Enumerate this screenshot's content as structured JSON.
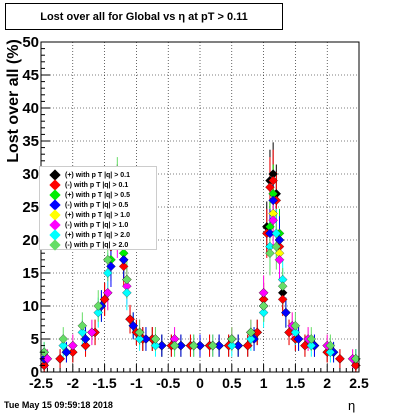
{
  "title": "Lost over all for Global vs   η at pT > 0.11",
  "stamp": "Tue May 15 09:59:18 2018",
  "chart_data": {
    "type": "scatter",
    "xlabel": "η",
    "ylabel": "Lost over all (%)",
    "xlim": [
      -2.5,
      2.5
    ],
    "ylim": [
      0,
      50
    ],
    "xticks": [
      -2.5,
      -2,
      -1.5,
      -1,
      -0.5,
      0,
      0.5,
      1,
      1.5,
      2,
      2.5
    ],
    "xtick_labels": [
      "-2.5",
      "-2",
      "-1.5",
      "-1",
      "-0.5",
      "0",
      "0.5",
      "1",
      "1.5",
      "2",
      "2.5"
    ],
    "yticks": [
      0,
      5,
      10,
      15,
      20,
      25,
      30,
      35,
      40,
      45,
      50
    ],
    "ytick_labels": [
      "0",
      "5",
      "10",
      "15",
      "20",
      "25",
      "30",
      "35",
      "40",
      "45",
      "50"
    ],
    "grid": true,
    "legend_position": "left",
    "marker": "diamond",
    "series": [
      {
        "name": "(+) with p T |q| > 0.1",
        "color": "#000000",
        "x": [
          -2.45,
          -2.2,
          -2.0,
          -1.8,
          -1.65,
          -1.5,
          -1.4,
          -1.35,
          -1.3,
          -1.25,
          -1.2,
          -1.1,
          -1.0,
          -0.9,
          -0.75,
          -0.6,
          -0.45,
          -0.3,
          -0.15,
          0.0,
          0.15,
          0.3,
          0.45,
          0.6,
          0.75,
          0.9,
          1.0,
          1.05,
          1.1,
          1.15,
          1.2,
          1.25,
          1.3,
          1.4,
          1.5,
          1.65,
          1.8,
          2.0,
          2.2,
          2.45
        ],
        "y": [
          1,
          2,
          3,
          4,
          6,
          11,
          19,
          25,
          27,
          26,
          17,
          8,
          6,
          5,
          5,
          4,
          4,
          4,
          4,
          4,
          4,
          4,
          4,
          4,
          4,
          6,
          11,
          22,
          29,
          30,
          27,
          20,
          12,
          6,
          5,
          4,
          4,
          3,
          2,
          1
        ]
      },
      {
        "name": "(-) with p T |q| > 0.1",
        "color": "#ff0000",
        "x": [
          -2.45,
          -2.2,
          -2.0,
          -1.8,
          -1.65,
          -1.5,
          -1.4,
          -1.35,
          -1.3,
          -1.25,
          -1.2,
          -1.1,
          -1.0,
          -0.9,
          -0.75,
          -0.6,
          -0.45,
          -0.3,
          -0.15,
          0.0,
          0.15,
          0.3,
          0.45,
          0.6,
          0.75,
          0.9,
          1.0,
          1.05,
          1.1,
          1.15,
          1.2,
          1.25,
          1.3,
          1.4,
          1.5,
          1.65,
          1.8,
          2.0,
          2.2,
          2.45
        ],
        "y": [
          1,
          2,
          3,
          4,
          6,
          11,
          19,
          24,
          26,
          25,
          16,
          8,
          6,
          5,
          5,
          4,
          4,
          4,
          4,
          4,
          4,
          4,
          4,
          4,
          4,
          6,
          11,
          21,
          28,
          29,
          26,
          19,
          11,
          6,
          5,
          4,
          4,
          3,
          2,
          1
        ]
      },
      {
        "name": "(+) with p T |q| > 0.5",
        "color": "#00ee00",
        "x": [
          -2.45,
          -2.1,
          -1.8,
          -1.55,
          -1.4,
          -1.3,
          -1.2,
          -1.05,
          -0.85,
          -0.6,
          -0.3,
          0.0,
          0.3,
          0.6,
          0.85,
          1.0,
          1.1,
          1.15,
          1.25,
          1.35,
          1.55,
          1.8,
          2.1,
          2.45
        ],
        "y": [
          2,
          3,
          5,
          10,
          17,
          24,
          18,
          7,
          5,
          4,
          4,
          4,
          4,
          4,
          5,
          10,
          22,
          27,
          21,
          9,
          5,
          4,
          3,
          2
        ]
      },
      {
        "name": "(-) with p T |q| > 0.5",
        "color": "#0000ff",
        "x": [
          -2.45,
          -2.1,
          -1.8,
          -1.55,
          -1.4,
          -1.3,
          -1.2,
          -1.05,
          -0.85,
          -0.6,
          -0.3,
          0.0,
          0.3,
          0.6,
          0.85,
          1.0,
          1.1,
          1.15,
          1.25,
          1.35,
          1.55,
          1.8,
          2.1,
          2.45
        ],
        "y": [
          2,
          3,
          5,
          10,
          16,
          23,
          17,
          7,
          5,
          4,
          4,
          4,
          4,
          4,
          5,
          10,
          21,
          26,
          20,
          9,
          5,
          4,
          3,
          2
        ]
      },
      {
        "name": "(+) with p T |q| > 1.0",
        "color": "#ffff00",
        "x": [
          -2.4,
          -2.0,
          -1.7,
          -1.45,
          -1.3,
          -1.15,
          -0.95,
          -0.7,
          -0.4,
          -0.1,
          0.2,
          0.5,
          0.8,
          1.0,
          1.15,
          1.25,
          1.45,
          1.7,
          2.0,
          2.4
        ],
        "y": [
          2,
          4,
          6,
          12,
          22,
          14,
          6,
          5,
          5,
          4,
          4,
          5,
          6,
          12,
          24,
          18,
          7,
          5,
          4,
          2
        ]
      },
      {
        "name": "(-) with p T |q| > 1.0",
        "color": "#ff00ff",
        "x": [
          -2.4,
          -2.0,
          -1.7,
          -1.45,
          -1.3,
          -1.15,
          -0.95,
          -0.7,
          -0.4,
          -0.1,
          0.2,
          0.5,
          0.8,
          1.0,
          1.15,
          1.25,
          1.45,
          1.7,
          2.0,
          2.4
        ],
        "y": [
          2,
          4,
          6,
          12,
          21,
          13,
          6,
          5,
          5,
          4,
          4,
          5,
          6,
          12,
          23,
          17,
          7,
          5,
          4,
          2
        ]
      },
      {
        "name": "(+) with p T |q| > 2.0",
        "color": "#00ffff",
        "x": [
          -2.45,
          -2.15,
          -1.85,
          -1.6,
          -1.45,
          -1.3,
          -1.15,
          -0.95,
          -0.7,
          -0.4,
          -0.1,
          0.2,
          0.5,
          0.8,
          1.0,
          1.1,
          1.2,
          1.3,
          1.5,
          1.75,
          2.05,
          2.45
        ],
        "y": [
          3,
          4,
          6,
          9,
          15,
          23,
          12,
          5,
          4,
          4,
          4,
          4,
          4,
          5,
          9,
          19,
          21,
          14,
          6,
          4,
          3,
          2
        ]
      },
      {
        "name": "(-) with p T |q| > 2.0",
        "color": "#66dd66",
        "x": [
          -2.45,
          -2.15,
          -1.85,
          -1.6,
          -1.45,
          -1.3,
          -1.15,
          -0.95,
          -0.7,
          -0.4,
          -0.1,
          0.2,
          0.5,
          0.8,
          1.0,
          1.1,
          1.2,
          1.3,
          1.5,
          1.75,
          2.05,
          2.45
        ],
        "y": [
          3,
          5,
          7,
          10,
          17,
          28,
          14,
          6,
          5,
          4,
          4,
          4,
          5,
          6,
          10,
          18,
          19,
          13,
          7,
          5,
          4,
          2
        ]
      }
    ]
  }
}
